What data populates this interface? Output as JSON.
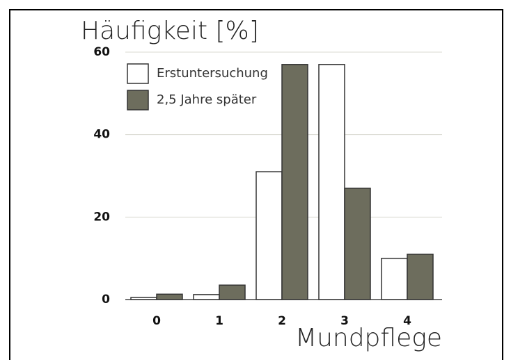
{
  "chart_data": {
    "type": "bar",
    "title": "Häufigkeit [%]",
    "x_label": "Mundpflege",
    "categories": [
      "0",
      "1",
      "2",
      "3",
      "4"
    ],
    "series": [
      {
        "name": "Erstuntersuchung",
        "color": "#ffffff",
        "values": [
          0.5,
          1.2,
          31,
          57,
          10
        ]
      },
      {
        "name": "2,5 Jahre später",
        "color": "#6d6d5d",
        "values": [
          1.3,
          3.5,
          57,
          27,
          11
        ]
      }
    ],
    "ylim": [
      0,
      60
    ],
    "yticks": [
      0,
      20,
      40,
      60
    ],
    "grid": true
  }
}
